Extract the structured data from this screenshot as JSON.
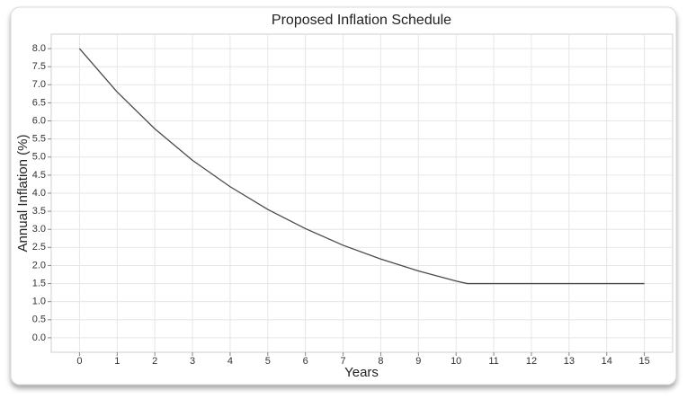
{
  "chart_data": {
    "type": "line",
    "title": "Proposed Inflation Schedule",
    "x_label": "Years",
    "y_label": "Annual Inflation (%)",
    "series": [
      {
        "name": "Inflation",
        "color": "#4a4a4a",
        "x": [
          0,
          1,
          2,
          3,
          4,
          5,
          6,
          7,
          8,
          9,
          10,
          10.3,
          15
        ],
        "values": [
          8.0,
          6.8,
          5.78,
          4.91,
          4.18,
          3.55,
          3.02,
          2.56,
          2.18,
          1.85,
          1.57,
          1.5,
          1.5
        ]
      }
    ],
    "xlim": [
      -0.75,
      15.75
    ],
    "xticks": [
      0,
      1,
      2,
      3,
      4,
      5,
      6,
      7,
      8,
      9,
      10,
      11,
      12,
      13,
      14,
      15
    ],
    "ylim": [
      -0.4,
      8.4
    ],
    "yticks": [
      {
        "value": 0,
        "label": "0.0"
      },
      0.5,
      {
        "value": 1,
        "label": "1.0"
      },
      1.5,
      {
        "value": 2,
        "label": "2.0"
      },
      2.5,
      {
        "value": 3,
        "label": "3.0"
      },
      3.5,
      {
        "value": 4,
        "label": "4.0"
      },
      4.5,
      {
        "value": 5,
        "label": "5.0"
      },
      5.5,
      {
        "value": 6,
        "label": "6.0"
      },
      6.5,
      {
        "value": 7,
        "label": "7.0"
      },
      7.5,
      {
        "value": 8,
        "label": "8.0"
      }
    ],
    "grid": true
  }
}
